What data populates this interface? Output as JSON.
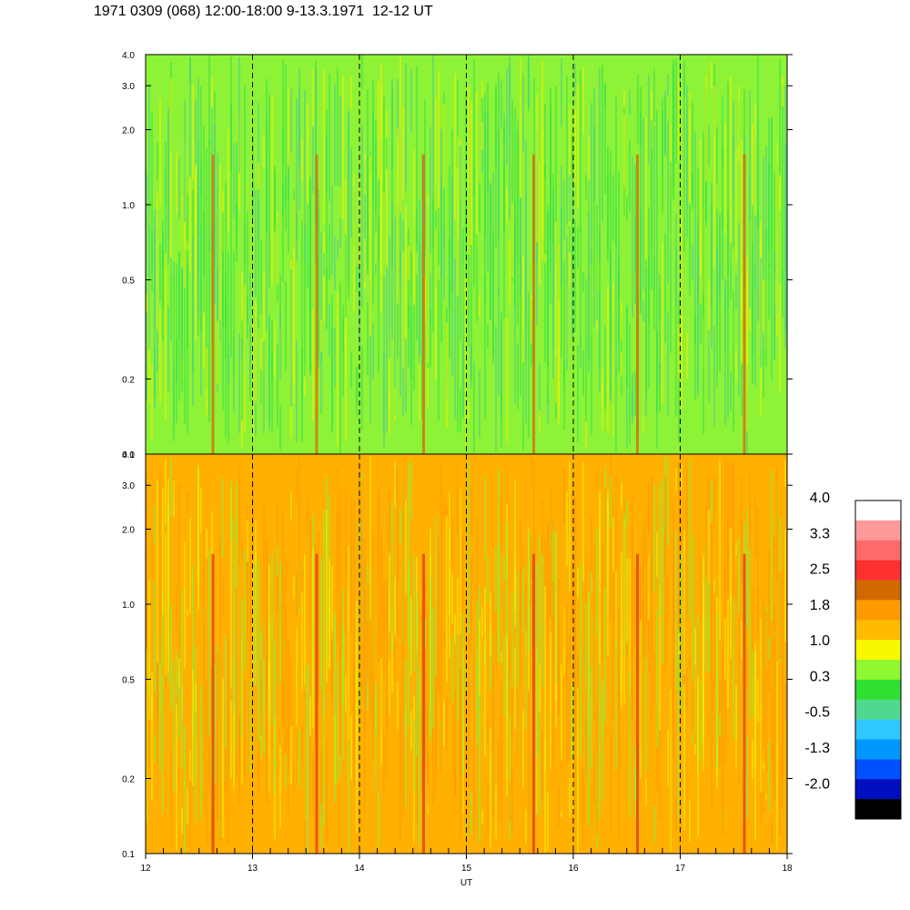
{
  "title": "1971 0309 (068) 12:00-18:00 9-13.3.1971  12-12 UT",
  "colors": {
    "dashed_line": "#000000",
    "frame": "#000000"
  },
  "chart_data": {
    "type": "heatmap",
    "panels": [
      {
        "name": "",
        "y_scale": "log",
        "ylim": [
          0.1,
          4.0
        ],
        "yticks": [
          "0.1",
          "0.2",
          "0.5",
          "1.0",
          "2.0",
          "3.0",
          "4.0"
        ],
        "ytick_values": [
          0.1,
          0.2,
          0.5,
          1.0,
          2.0,
          3.0,
          4.0
        ],
        "dominant_level_range": [
          0.3,
          1.0
        ],
        "base_color": "#8ef236",
        "low_color": "#36e24a",
        "high_color": "#4dd08a",
        "highlight_color": "#f0f000",
        "spike_color": "#d86a10"
      },
      {
        "name": "",
        "y_scale": "log",
        "ylim": [
          0.1,
          4.0
        ],
        "yticks": [
          "0.1",
          "0.2",
          "0.5",
          "1.0",
          "2.0",
          "3.0",
          "4.0"
        ],
        "ytick_values": [
          0.1,
          0.2,
          0.5,
          1.0,
          2.0,
          3.0,
          4.0
        ],
        "dominant_level_range": [
          1.0,
          2.5
        ],
        "base_color": "#ffb000",
        "low_color": "#ff9a00",
        "high_color": "#8ef236",
        "highlight_color": "#f0f000",
        "spike_color": "#e04010"
      }
    ],
    "x_range": [
      12,
      18
    ],
    "xticks": [
      "12",
      "13",
      "14",
      "15",
      "16",
      "17",
      "18"
    ],
    "xtick_values": [
      12,
      13,
      14,
      15,
      16,
      17,
      18
    ],
    "xlabel": "UT",
    "dashed_vertical_lines_at": [
      13,
      14,
      15,
      16,
      17
    ],
    "spike_times": [
      12.63,
      13.6,
      14.6,
      15.63,
      16.6,
      17.6
    ],
    "colorbar": {
      "tick_labels": [
        "4.0",
        "3.3",
        "2.5",
        "1.8",
        "1.0",
        "0.3",
        "-0.5",
        "-1.3",
        "-2.0"
      ],
      "levels_top_to_bottom": [
        "#ffffff",
        "#ff9a9a",
        "#ff6a6a",
        "#ff3030",
        "#d06a00",
        "#ff9a00",
        "#ffbb00",
        "#f8f800",
        "#90f830",
        "#30e030",
        "#50d890",
        "#30c8ff",
        "#0098ff",
        "#0050ff",
        "#0010c0",
        "#000000"
      ]
    }
  }
}
